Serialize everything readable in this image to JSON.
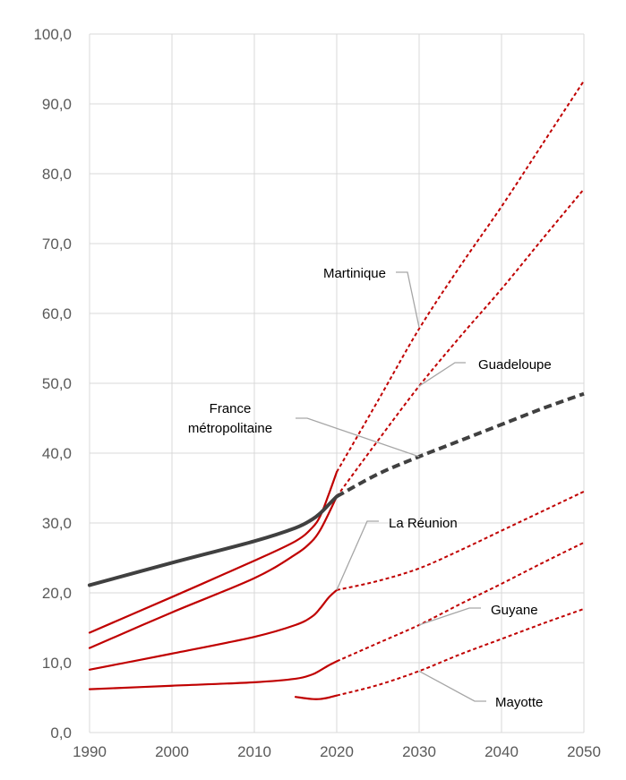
{
  "chart_data": {
    "type": "line",
    "title": "",
    "xlabel": "",
    "ylabel": "",
    "xlim": [
      1990,
      2050
    ],
    "ylim": [
      0,
      100
    ],
    "x_ticks": [
      "1990",
      "2000",
      "2010",
      "2020",
      "2030",
      "2040",
      "2050"
    ],
    "y_ticks": [
      "0,0",
      "10,0",
      "20,0",
      "30,0",
      "40,0",
      "50,0",
      "60,0",
      "70,0",
      "80,0",
      "90,0",
      "100,0"
    ],
    "grid": true,
    "legend": "none",
    "colors": {
      "dom": "#c00000",
      "metro": "#404040",
      "grid": "#d9d9d9",
      "leader": "#a6a6a6"
    },
    "series": [
      {
        "name": "Martinique",
        "observed": [
          [
            1990,
            14.3
          ],
          [
            2000,
            19.4
          ],
          [
            2010,
            24.6
          ],
          [
            2015,
            27.4
          ],
          [
            2017,
            29.3
          ],
          [
            2018,
            31.0
          ],
          [
            2019,
            34.0
          ],
          [
            2020,
            37.3
          ]
        ],
        "projected": [
          [
            2020,
            37.3
          ],
          [
            2025,
            47.5
          ],
          [
            2030,
            57.8
          ],
          [
            2035,
            66.8
          ],
          [
            2040,
            75.3
          ],
          [
            2045,
            84.3
          ],
          [
            2050,
            93.3
          ]
        ]
      },
      {
        "name": "Guadeloupe",
        "observed": [
          [
            1990,
            12.1
          ],
          [
            2000,
            17.2
          ],
          [
            2010,
            22.1
          ],
          [
            2015,
            25.5
          ],
          [
            2017,
            27.4
          ],
          [
            2018,
            29.0
          ],
          [
            2019,
            31.3
          ],
          [
            2020,
            33.8
          ]
        ],
        "projected": [
          [
            2020,
            33.8
          ],
          [
            2025,
            41.8
          ],
          [
            2030,
            49.6
          ],
          [
            2035,
            56.7
          ],
          [
            2040,
            63.5
          ],
          [
            2045,
            70.7
          ],
          [
            2050,
            77.8
          ]
        ]
      },
      {
        "name": "France\nmétropolitaine",
        "observed": [
          [
            1990,
            21.1
          ],
          [
            2000,
            24.3
          ],
          [
            2010,
            27.4
          ],
          [
            2015,
            29.3
          ],
          [
            2017,
            30.5
          ],
          [
            2018,
            31.4
          ],
          [
            2019,
            32.6
          ],
          [
            2020,
            33.8
          ]
        ],
        "projected": [
          [
            2020,
            33.8
          ],
          [
            2025,
            37.0
          ],
          [
            2030,
            39.5
          ],
          [
            2035,
            41.8
          ],
          [
            2040,
            44.1
          ],
          [
            2045,
            46.4
          ],
          [
            2050,
            48.5
          ]
        ]
      },
      {
        "name": "La Réunion",
        "observed": [
          [
            1990,
            9.0
          ],
          [
            2000,
            11.3
          ],
          [
            2010,
            13.7
          ],
          [
            2015,
            15.4
          ],
          [
            2017,
            16.6
          ],
          [
            2018,
            17.8
          ],
          [
            2019,
            19.3
          ],
          [
            2020,
            20.4
          ]
        ],
        "projected": [
          [
            2020,
            20.4
          ],
          [
            2025,
            21.7
          ],
          [
            2030,
            23.5
          ],
          [
            2035,
            26.1
          ],
          [
            2040,
            28.9
          ],
          [
            2045,
            31.7
          ],
          [
            2050,
            34.5
          ]
        ]
      },
      {
        "name": "Guyane",
        "observed": [
          [
            1990,
            6.2
          ],
          [
            2000,
            6.7
          ],
          [
            2010,
            7.2
          ],
          [
            2015,
            7.7
          ],
          [
            2017,
            8.3
          ],
          [
            2018,
            8.9
          ],
          [
            2019,
            9.6
          ],
          [
            2020,
            10.2
          ]
        ],
        "projected": [
          [
            2020,
            10.2
          ],
          [
            2025,
            12.8
          ],
          [
            2030,
            15.4
          ],
          [
            2035,
            18.4
          ],
          [
            2040,
            21.3
          ],
          [
            2045,
            24.3
          ],
          [
            2050,
            27.2
          ]
        ]
      },
      {
        "name": "Mayotte",
        "observed": [
          [
            2015,
            5.1
          ],
          [
            2017,
            4.8
          ],
          [
            2018,
            4.8
          ],
          [
            2019,
            5.0
          ],
          [
            2020,
            5.3
          ]
        ],
        "projected": [
          [
            2020,
            5.3
          ],
          [
            2025,
            6.8
          ],
          [
            2030,
            8.8
          ],
          [
            2035,
            11.2
          ],
          [
            2040,
            13.4
          ],
          [
            2045,
            15.6
          ],
          [
            2050,
            17.7
          ]
        ]
      }
    ],
    "annotations": [
      {
        "series": "Martinique",
        "text": "Martinique",
        "at": [
          2030,
          58.0
        ]
      },
      {
        "series": "Guadeloupe",
        "text": "Guadeloupe",
        "at": [
          2030,
          49.6
        ]
      },
      {
        "series": "France\nmétropolitaine",
        "text": "France\nmétropolitaine",
        "at": [
          2030,
          39.5
        ]
      },
      {
        "series": "La Réunion",
        "text": "La Réunion",
        "at": [
          2020,
          20.4
        ]
      },
      {
        "series": "Guyane",
        "text": "Guyane",
        "at": [
          2030,
          15.4
        ]
      },
      {
        "series": "Mayotte",
        "text": "Mayotte",
        "at": [
          2030,
          8.8
        ]
      }
    ]
  }
}
